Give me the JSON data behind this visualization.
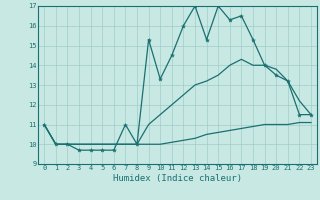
{
  "title": "",
  "xlabel": "Humidex (Indice chaleur)",
  "xlim": [
    -0.5,
    23.5
  ],
  "ylim": [
    9,
    17
  ],
  "xticks": [
    0,
    1,
    2,
    3,
    4,
    5,
    6,
    7,
    8,
    9,
    10,
    11,
    12,
    13,
    14,
    15,
    16,
    17,
    18,
    19,
    20,
    21,
    22,
    23
  ],
  "yticks": [
    9,
    10,
    11,
    12,
    13,
    14,
    15,
    16,
    17
  ],
  "bg_color": "#c8e8e4",
  "line_color": "#1a7070",
  "grid_color": "#a0ccc8",
  "line1_x": [
    0,
    1,
    2,
    3,
    4,
    5,
    6,
    7,
    8,
    9,
    10,
    11,
    12,
    13,
    14,
    15,
    16,
    17,
    18,
    19,
    20,
    21,
    22,
    23
  ],
  "line1_y": [
    11.0,
    10.0,
    10.0,
    9.7,
    9.7,
    9.7,
    9.7,
    11.0,
    10.0,
    15.3,
    13.3,
    14.5,
    16.0,
    17.0,
    15.3,
    17.0,
    16.3,
    16.5,
    15.3,
    14.0,
    13.5,
    13.2,
    11.5,
    11.5
  ],
  "line2_x": [
    0,
    1,
    2,
    3,
    4,
    5,
    6,
    7,
    8,
    9,
    10,
    11,
    12,
    13,
    14,
    15,
    16,
    17,
    18,
    19,
    20,
    21,
    22,
    23
  ],
  "line2_y": [
    11.0,
    10.0,
    10.0,
    10.0,
    10.0,
    10.0,
    10.0,
    10.0,
    10.0,
    10.0,
    10.0,
    10.1,
    10.2,
    10.3,
    10.5,
    10.6,
    10.7,
    10.8,
    10.9,
    11.0,
    11.0,
    11.0,
    11.1,
    11.1
  ],
  "line3_x": [
    0,
    1,
    2,
    3,
    4,
    5,
    6,
    7,
    8,
    9,
    10,
    11,
    12,
    13,
    14,
    15,
    16,
    17,
    18,
    19,
    20,
    21,
    22,
    23
  ],
  "line3_y": [
    11.0,
    10.0,
    10.0,
    10.0,
    10.0,
    10.0,
    10.0,
    10.0,
    10.0,
    11.0,
    11.5,
    12.0,
    12.5,
    13.0,
    13.2,
    13.5,
    14.0,
    14.3,
    14.0,
    14.0,
    13.8,
    13.2,
    12.2,
    11.5
  ],
  "xlabel_fontsize": 6.5,
  "tick_fontsize": 5.0
}
